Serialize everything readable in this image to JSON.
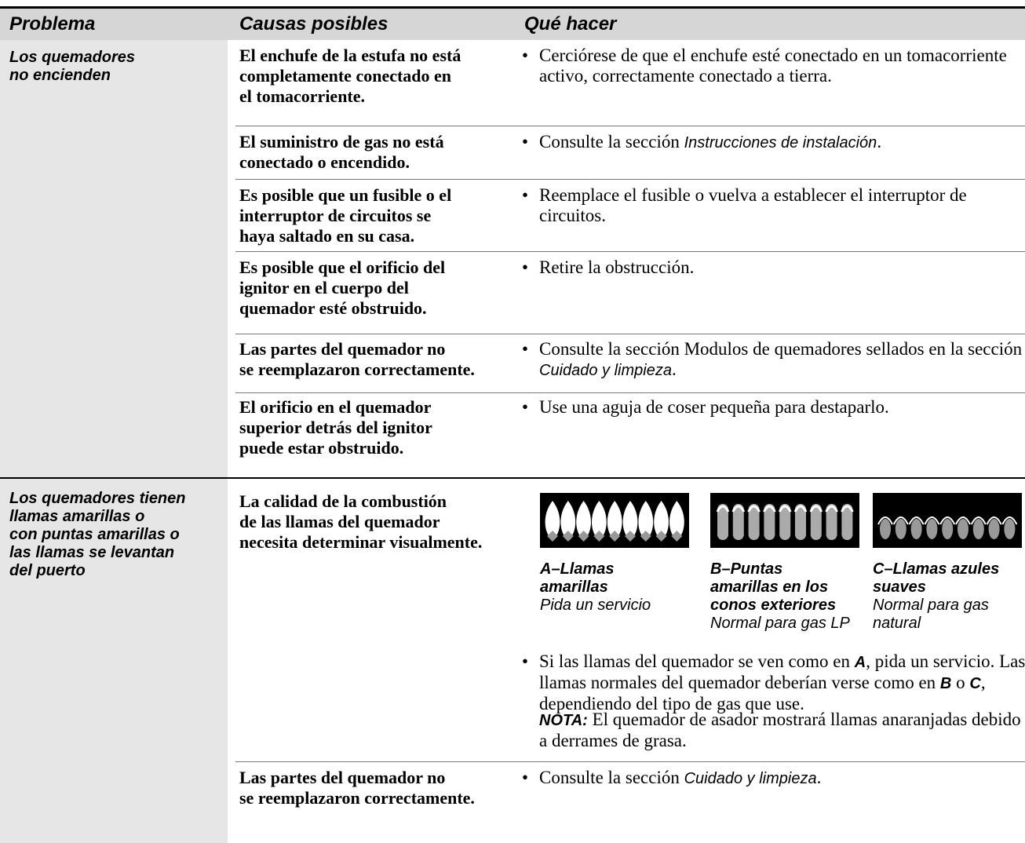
{
  "header": {
    "problem": "Problema",
    "causes": "Causas posibles",
    "action": "Qué hacer"
  },
  "rows": [
    {
      "problem": [
        "Los quemadores",
        "no encienden"
      ],
      "items": [
        {
          "cause": [
            "El enchufe de la estufa no está",
            "completamente conectado en",
            "el tomacorriente."
          ],
          "fix": [
            "Cerciórese de que el enchufe esté conectado en un tomacorriente activo, correctamente conectado a tierra."
          ]
        },
        {
          "cause": [
            "El suministro de gas no está",
            "conectado o encendido."
          ],
          "fix": [
            "Consulte la sección ",
            "Instrucciones de instalación",
            "."
          ]
        },
        {
          "cause": [
            "Es posible que un fusible o el",
            "interruptor de circuitos se",
            "haya saltado en su casa."
          ],
          "fix": [
            "Reemplace el fusible o vuelva a establecer el interruptor de circuitos."
          ]
        },
        {
          "cause": [
            "Es posible que el orificio del",
            "ignitor en el cuerpo del",
            "quemador esté obstruido."
          ],
          "fix": [
            "Retire la obstrucción."
          ]
        },
        {
          "cause": [
            "Las partes del quemador no",
            "se reemplazaron correctamente."
          ],
          "fix": [
            "Consulte la sección Modulos de quemadores sellados en la sección ",
            "Cuidado y limpieza",
            "."
          ]
        },
        {
          "cause": [
            "El orificio en el quemador",
            "superior detrás del ignitor",
            "puede estar obstruido."
          ],
          "fix": [
            "Use una aguja de coser pequeña para destaparlo."
          ]
        }
      ]
    },
    {
      "problem": [
        "Los quemadores tienen",
        "llamas amarillas o",
        "con puntas amarillas o",
        "las llamas se levantan",
        "del puerto"
      ],
      "items": [
        {
          "cause": [
            "La calidad de la combustión",
            "de las llamas del quemador",
            "necesita determinar visualmente."
          ],
          "flames": [
            {
              "label": [
                "A–Llamas",
                "amarillas"
              ],
              "note": [
                "Pida un servicio"
              ]
            },
            {
              "label": [
                "B–Puntas",
                "amarillas en los",
                "conos exteriores"
              ],
              "note": [
                "Normal para gas LP"
              ]
            },
            {
              "label": [
                "C–Llamas azules",
                "suaves"
              ],
              "note": [
                "Normal para gas",
                "natural"
              ]
            }
          ],
          "fix": [
            "Si las llamas del quemador se ven como en ",
            "A",
            ", pida un servicio. Las llamas normales del quemador deberían verse como en ",
            "B",
            " o ",
            "C",
            ", dependiendo del tipo de gas que use."
          ],
          "note": [
            "NOTA:",
            " El quemador de asador mostrará llamas anaranjadas debido a derrames de grasa."
          ]
        },
        {
          "cause": [
            "Las partes del quemador no",
            "se reemplazaron correctamente."
          ],
          "fix": [
            "Consulte la sección ",
            "Cuidado y limpieza",
            "."
          ]
        }
      ]
    }
  ]
}
